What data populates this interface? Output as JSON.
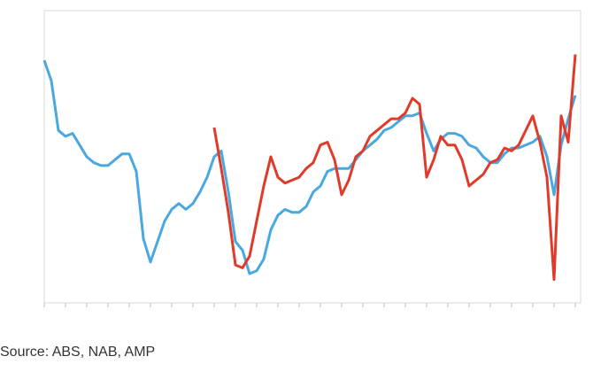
{
  "chart_data": {
    "type": "line",
    "source": "Source: ABS, NAB, AMP",
    "x": [
      0,
      1,
      2,
      3,
      4,
      5,
      6,
      7,
      8,
      9,
      10,
      11,
      12,
      13,
      14,
      15,
      16,
      17,
      18,
      19,
      20,
      21,
      22,
      23,
      24,
      25,
      26,
      27,
      28,
      29,
      30,
      31,
      32,
      33,
      34,
      35,
      36,
      37,
      38,
      39,
      40,
      41,
      42,
      43,
      44,
      45,
      46,
      47,
      48,
      49,
      50,
      51,
      52,
      53,
      54,
      55,
      56,
      57,
      58,
      59,
      60,
      61,
      62,
      63,
      64,
      65,
      66,
      67,
      68,
      69,
      70,
      71,
      72,
      73,
      74,
      75
    ],
    "xlim": [
      0,
      75.75
    ],
    "xticks": [
      0,
      3,
      6,
      9,
      12,
      15,
      18,
      21,
      24,
      27,
      30,
      33,
      36,
      39,
      42,
      45,
      48,
      51,
      54,
      57,
      60,
      63,
      66,
      69,
      72,
      75
    ],
    "ylim": [
      0,
      100
    ],
    "series": [
      {
        "color": "#4aa8e0",
        "values": [
          83,
          76,
          59,
          57,
          58,
          54,
          50,
          48,
          47,
          47,
          49,
          51,
          51,
          45,
          22,
          14,
          21,
          28,
          32,
          34,
          32,
          34,
          38,
          43,
          50,
          52,
          38,
          21,
          18,
          10,
          11,
          15,
          25,
          30,
          32,
          31,
          31,
          33,
          38,
          40,
          45,
          46,
          46,
          46,
          49,
          52,
          54,
          56,
          59,
          60,
          62,
          64,
          64,
          65,
          58,
          52,
          56,
          58,
          58,
          57,
          54,
          53,
          50,
          48,
          48,
          51,
          53,
          53,
          54,
          55,
          57,
          50,
          37,
          54,
          63,
          71
        ]
      },
      {
        "color": "#e03a2a",
        "values": [
          null,
          null,
          null,
          null,
          null,
          null,
          null,
          null,
          null,
          null,
          null,
          null,
          null,
          null,
          null,
          null,
          null,
          null,
          null,
          null,
          null,
          null,
          null,
          null,
          60,
          46,
          31,
          13,
          12,
          16,
          28,
          40,
          50,
          43,
          41,
          42,
          43,
          46,
          48,
          54,
          55,
          49,
          37,
          42,
          50,
          52,
          57,
          59,
          61,
          63,
          63,
          65,
          70,
          68,
          43,
          49,
          57,
          54,
          54,
          49,
          40,
          42,
          44,
          48,
          49,
          53,
          52,
          54,
          59,
          64,
          55,
          43,
          8,
          64,
          55,
          85
        ]
      }
    ]
  }
}
